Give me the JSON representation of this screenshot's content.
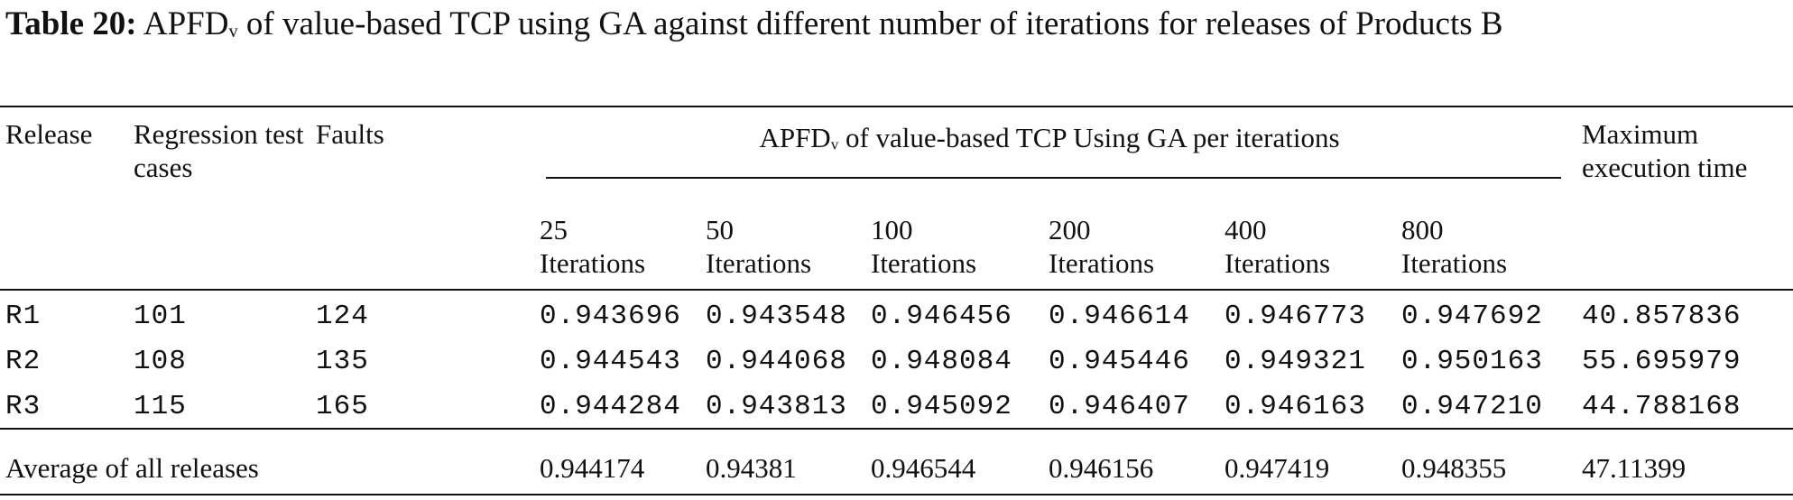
{
  "caption": {
    "label": "Table 20:",
    "metric": "APFD",
    "subscript": "v",
    "text": "of value-based TCP using GA against different number of iterations for releases of Products B"
  },
  "table": {
    "headers": {
      "release": "Release",
      "test_cases": "Regression test cases",
      "faults": "Faults",
      "group": {
        "metric": "APFD",
        "subscript": "v",
        "text": "of value-based TCP Using GA per iterations"
      },
      "iterations": [
        "25 Iterations",
        "50 Iterations",
        "100 Iterations",
        "200 Iterations",
        "400 Iterations",
        "800 Iterations"
      ],
      "max_time": "Maximum execution time"
    },
    "rows": [
      [
        "R1",
        "101",
        "124",
        "0.943696",
        "0.943548",
        "0.946456",
        "0.946614",
        "0.946773",
        "0.947692",
        "40.857836"
      ],
      [
        "R2",
        "108",
        "135",
        "0.944543",
        "0.944068",
        "0.948084",
        "0.945446",
        "0.949321",
        "0.950163",
        "55.695979"
      ],
      [
        "R3",
        "115",
        "165",
        "0.944284",
        "0.943813",
        "0.945092",
        "0.946407",
        "0.946163",
        "0.947210",
        "44.788168"
      ]
    ],
    "average": [
      "Average of all releases",
      "0.944174",
      "0.94381",
      "0.946544",
      "0.946156",
      "0.947419",
      "0.948355",
      "47.11399"
    ]
  }
}
